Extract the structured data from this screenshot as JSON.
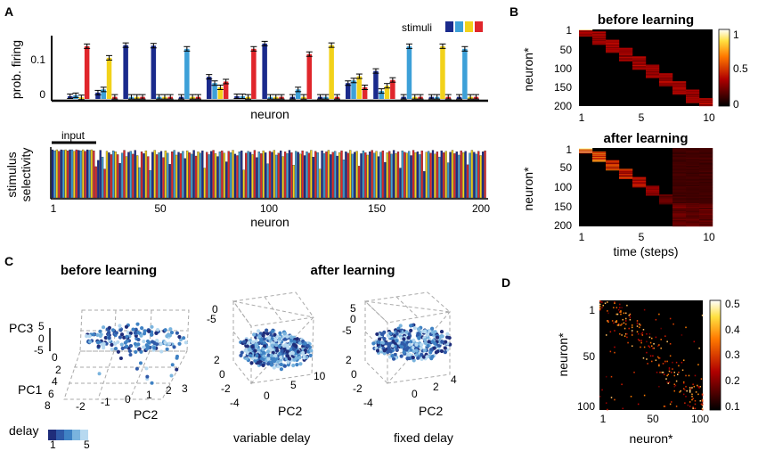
{
  "panels": {
    "a": "A",
    "b": "B",
    "c": "C",
    "d": "D"
  },
  "stimulus_colors": [
    "#1a2a8c",
    "#3da0d8",
    "#f2d21a",
    "#e0262b"
  ],
  "chart_data": [
    {
      "id": "A-top",
      "type": "bar",
      "title": "",
      "legend_label": "stimuli",
      "ylabel": "prob. firing",
      "xlabel": "neuron",
      "ylim": [
        0,
        0.12
      ],
      "yticks": [
        "0.1",
        "0"
      ],
      "series_colors": [
        "#1a2a8c",
        "#3da0d8",
        "#f2d21a",
        "#e0262b"
      ],
      "groups": [
        [
          0.005,
          0.007,
          0.003,
          0.1
        ],
        [
          0.012,
          0.018,
          0.078,
          0.004
        ],
        [
          0.102,
          0.004,
          0.004,
          0.004
        ],
        [
          0.101,
          0.004,
          0.004,
          0.004
        ],
        [
          0.004,
          0.095,
          0.004,
          0.004
        ],
        [
          0.042,
          0.03,
          0.022,
          0.033
        ],
        [
          0.005,
          0.005,
          0.004,
          0.095
        ],
        [
          0.105,
          0.004,
          0.004,
          0.004
        ],
        [
          0.004,
          0.018,
          0.004,
          0.085
        ],
        [
          0.004,
          0.004,
          0.102,
          0.004
        ],
        [
          0.03,
          0.035,
          0.043,
          0.022
        ],
        [
          0.053,
          0.015,
          0.025,
          0.036
        ],
        [
          0.004,
          0.1,
          0.004,
          0.004
        ],
        [
          0.004,
          0.004,
          0.1,
          0.004
        ],
        [
          0.004,
          0.095,
          0.004,
          0.004
        ]
      ]
    },
    {
      "id": "A-bottom",
      "type": "bar",
      "ylabel_line1": "stimulus",
      "ylabel_line2": "selectivity",
      "xlabel": "neuron",
      "annotation": "input",
      "xlim": [
        1,
        200
      ],
      "xticks": [
        "1",
        "50",
        "100",
        "150",
        "200"
      ],
      "n_neurons": 200,
      "values": [
        1,
        0.98,
        1,
        0.97,
        1,
        0.99,
        1,
        0.98,
        1,
        1,
        0.97,
        1,
        0.99,
        0.98,
        1,
        0.97,
        1,
        0.99,
        1,
        0.98,
        0.65,
        0.78,
        0.99,
        0.85,
        0.6,
        0.97,
        0.94,
        0.9,
        0.98,
        0.96,
        0.9,
        0.72,
        0.93,
        0.99,
        0.86,
        0.95,
        0.97,
        0.91,
        0.99,
        0.88,
        0.63,
        0.96,
        0.92,
        0.98,
        0.86,
        0.57,
        0.95,
        0.99,
        0.9,
        0.94,
        0.97,
        0.84,
        0.98,
        0.93,
        0.7,
        0.96,
        0.99,
        0.89,
        0.95,
        0.92,
        0.97,
        0.82,
        0.98,
        0.94,
        0.91,
        0.99,
        0.87,
        0.96,
        0.93,
        0.98,
        0.62,
        0.95,
        0.9,
        0.97,
        0.99,
        0.92,
        0.86,
        0.96,
        0.98,
        0.93,
        0.75,
        0.97,
        0.94,
        0.99,
        0.91,
        0.88,
        0.96,
        0.98,
        0.58,
        0.93,
        0.97,
        0.95,
        0.9,
        0.99,
        0.84,
        0.96,
        0.92,
        0.98,
        0.94,
        0.71,
        0.97,
        0.95,
        0.99,
        0.89,
        0.93,
        0.98,
        0.86,
        0.96,
        0.92,
        0.99,
        0.94,
        0.68,
        0.97,
        0.95,
        0.91,
        0.98,
        0.88,
        0.96,
        0.93,
        0.99,
        0.85,
        0.97,
        0.94,
        0.6,
        0.98,
        0.92,
        0.96,
        0.99,
        0.9,
        0.95,
        0.97,
        0.87,
        0.94,
        0.98,
        0.79,
        0.96,
        0.93,
        0.99,
        0.91,
        0.95,
        0.97,
        0.66,
        0.92,
        0.98,
        0.94,
        0.89,
        0.96,
        0.99,
        0.93,
        0.97,
        0.86,
        0.95,
        0.98,
        0.74,
        0.94,
        0.97,
        0.91,
        0.99,
        0.92,
        0.96,
        0.62,
        0.98,
        0.95,
        0.93,
        0.97,
        0.88,
        0.99,
        0.94,
        0.96,
        0.9,
        0.98,
        0.55,
        0.95,
        0.97,
        0.93,
        0.99,
        0.91,
        0.96,
        0.85,
        0.98,
        0.94,
        0.97,
        0.73,
        0.95,
        0.99,
        0.92,
        0.96,
        0.89,
        0.98,
        0.94,
        0.97,
        0.69,
        0.93,
        0.99,
        0.95,
        0.91,
        0.97,
        0.88,
        0.96,
        0.98
      ],
      "colors_index": [
        0,
        1,
        2,
        3,
        0,
        1,
        2,
        3,
        0,
        1,
        2,
        3,
        0,
        1,
        2,
        3,
        0,
        1,
        2,
        3,
        3,
        0,
        0,
        1,
        3,
        2,
        0,
        3,
        1,
        2,
        3,
        0,
        1,
        3,
        2,
        0,
        1,
        3,
        0,
        2,
        1,
        3,
        0,
        2,
        3,
        1,
        0,
        2,
        3,
        1,
        0,
        3,
        2,
        1,
        0,
        3,
        1,
        2,
        0,
        3,
        1,
        0,
        2,
        3,
        1,
        0,
        3,
        2,
        1,
        0,
        2,
        3,
        1,
        0,
        3,
        2,
        0,
        1,
        3,
        2,
        0,
        3,
        1,
        2,
        0,
        3,
        1,
        0,
        2,
        3,
        1,
        0,
        2,
        3,
        0,
        1,
        3,
        2,
        0,
        1,
        3,
        0,
        2,
        1,
        3,
        0,
        2,
        3,
        1,
        0,
        3,
        2,
        1,
        0,
        2,
        3,
        0,
        1,
        3,
        2,
        0,
        3,
        1,
        2,
        0,
        1,
        3,
        2,
        0,
        3,
        1,
        0,
        2,
        3,
        1,
        0,
        3,
        2,
        1,
        0,
        2,
        3,
        0,
        1,
        3,
        2,
        0,
        3,
        1,
        2,
        0,
        1,
        3,
        0,
        2,
        3,
        1,
        0,
        2,
        3,
        0,
        1,
        3,
        2,
        1,
        0,
        3,
        2,
        0,
        1,
        3,
        0,
        2,
        1,
        3,
        0,
        2,
        3,
        1,
        0,
        3,
        2,
        1,
        0,
        2,
        3,
        0,
        1,
        3,
        2,
        0,
        3,
        1,
        2,
        0,
        1,
        3,
        2,
        0,
        3
      ]
    },
    {
      "id": "B-top",
      "type": "heatmap",
      "title": "before learning",
      "ylabel": "neuron*",
      "yticks": [
        "1",
        "50",
        "100",
        "150",
        "200"
      ],
      "colorbar_ticks": [
        "1",
        "0.5",
        "0"
      ],
      "n_rows": 200,
      "n_cols": 10
    },
    {
      "id": "B-bottom",
      "type": "heatmap",
      "title": "after learning",
      "ylabel": "neuron*",
      "xlabel": "time (steps)",
      "yticks": [
        "1",
        "50",
        "100",
        "150",
        "200"
      ],
      "xticks": [
        "1",
        "5",
        "10"
      ],
      "n_rows": 200,
      "n_cols": 10
    },
    {
      "id": "C-before",
      "type": "scatter",
      "title": "before learning",
      "zlabel": "PC3",
      "ylabel": "PC1",
      "xlabel": "PC2",
      "z_ticks": [
        "5",
        "0",
        "-5"
      ],
      "y_ticks": [
        "0",
        "2",
        "4",
        "6",
        "8"
      ],
      "x_ticks": [
        "-2",
        "-1",
        "0",
        "1",
        "2",
        "3"
      ],
      "legend_label": "delay",
      "legend_ticks": [
        "1",
        "5"
      ],
      "legend_colors": [
        "#1f2d7a",
        "#2f5aa8",
        "#3f82c4",
        "#7ab4de",
        "#b7d9f0"
      ]
    },
    {
      "id": "C-variable",
      "type": "scatter",
      "title": "after learning",
      "caption": "variable delay",
      "xlabel": "PC2",
      "z_ticks": [
        "0",
        "-5"
      ],
      "y_ticks": [
        "2",
        "0",
        "-2",
        "-4"
      ],
      "x_ticks": [
        "0",
        "5",
        "10"
      ]
    },
    {
      "id": "C-fixed",
      "type": "scatter",
      "caption": "fixed delay",
      "xlabel": "PC2",
      "z_ticks": [
        "5",
        "0",
        "-5"
      ],
      "y_ticks": [
        "2",
        "0",
        "-2",
        "-4"
      ],
      "x_ticks": [
        "0",
        "2",
        "4"
      ]
    },
    {
      "id": "D",
      "type": "heatmap",
      "ylabel": "neuron*",
      "xlabel": "neuron*",
      "yticks": [
        "1",
        "50",
        "100"
      ],
      "xticks": [
        "1",
        "50",
        "100"
      ],
      "colorbar_ticks": [
        "0.5",
        "0.4",
        "0.3",
        "0.2",
        "0.1"
      ],
      "n": 100
    }
  ]
}
